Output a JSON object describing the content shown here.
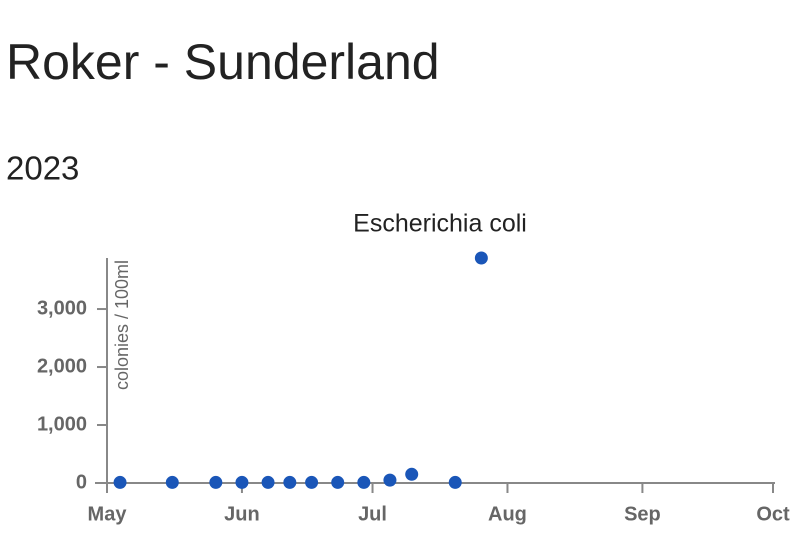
{
  "chart_data": {
    "type": "scatter",
    "title": "Roker - Sunderland",
    "subtitle": "2023",
    "chart_title": "Escherichia coli",
    "y_label": "colonies / 100ml",
    "color": "#1a56b8",
    "x": [
      "2023-05-04",
      "2023-05-16",
      "2023-05-26",
      "2023-06-01",
      "2023-06-07",
      "2023-06-12",
      "2023-06-17",
      "2023-06-23",
      "2023-06-29",
      "2023-07-05",
      "2023-07-10",
      "2023-07-20",
      "2023-07-26"
    ],
    "values": [
      10,
      10,
      10,
      10,
      10,
      10,
      10,
      10,
      10,
      50,
      150,
      10,
      3880
    ],
    "xlim": [
      "2023-05-01",
      "2023-10-01"
    ],
    "xticks": [
      {
        "value": "2023-05-01",
        "label": "May"
      },
      {
        "value": "2023-06-01",
        "label": "Jun"
      },
      {
        "value": "2023-07-01",
        "label": "Jul"
      },
      {
        "value": "2023-08-01",
        "label": "Aug"
      },
      {
        "value": "2023-09-01",
        "label": "Sep"
      },
      {
        "value": "2023-10-01",
        "label": "Oct"
      }
    ],
    "ylim": [
      0,
      3880
    ],
    "yticks": [
      0,
      {
        "value": 1000,
        "label": "1,000"
      },
      {
        "value": 2000,
        "label": "2,000"
      },
      {
        "value": 3000,
        "label": "3,000"
      }
    ]
  }
}
